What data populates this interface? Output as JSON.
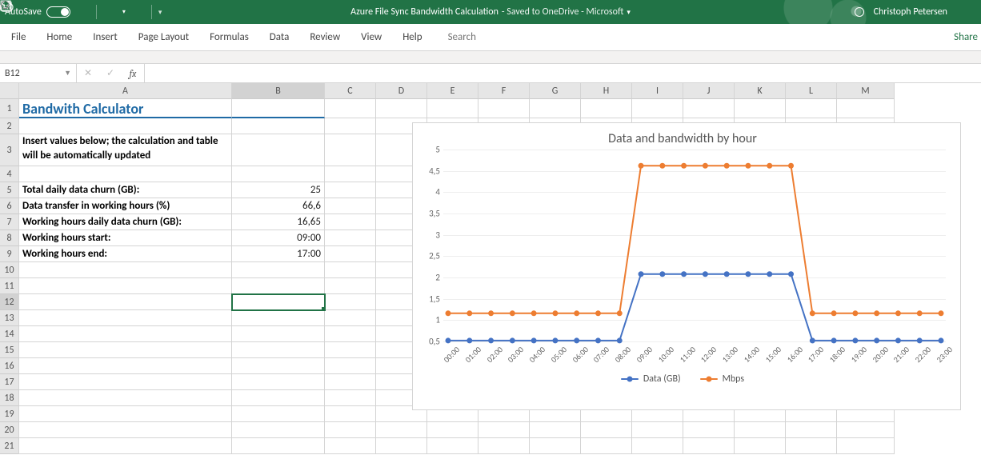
{
  "titlebar": {
    "autosave_label": "AutoSave",
    "doc_title": "Azure File Sync Bandwidth Calculation",
    "doc_status": "  -  Saved to OneDrive - Microsoft  ",
    "dropdown_glyph": "▾",
    "user_name": "Christoph Petersen"
  },
  "ribbon": {
    "tabs": [
      "File",
      "Home",
      "Insert",
      "Page Layout",
      "Formulas",
      "Data",
      "Review",
      "View",
      "Help"
    ],
    "search_placeholder": "Search",
    "share_label": "Share"
  },
  "formula_bar": {
    "name_box": "B12",
    "cancel": "✕",
    "accept": "✓",
    "fx": "fx"
  },
  "columns": [
    "A",
    "B",
    "C",
    "D",
    "E",
    "F",
    "G",
    "H",
    "I",
    "J",
    "K",
    "L",
    "M"
  ],
  "rows": [
    1,
    2,
    3,
    4,
    5,
    6,
    7,
    8,
    9,
    10,
    11,
    12,
    13,
    14,
    15,
    16,
    17,
    18,
    19,
    20,
    21
  ],
  "selected": {
    "row_idx": 11,
    "col_idx": 1,
    "row_label": "12",
    "col_label": "B"
  },
  "content": {
    "title": "Bandwith Calculator",
    "instructions": "Insert values below; the calculation and table will be",
    "instructions2": "automatically updated",
    "labels": {
      "total_churn": "Total daily data churn (GB):",
      "pct_working": "Data transfer in working hours (%)",
      "working_churn": "Working hours daily data churn (GB):",
      "start": "Working hours start:",
      "end": "Working hours end:"
    },
    "values": {
      "total_churn": "25",
      "pct_working": "66,6",
      "working_churn": "16,65",
      "start": "09:00",
      "end": "17:00"
    }
  },
  "chart": {
    "title": "Data and bandwidth by hour",
    "type": "line",
    "background_color": "#ffffff",
    "grid_color": "#eeeeee",
    "title_fontsize": 16,
    "label_fontsize": 11,
    "yticks": [
      "0,5",
      "1",
      "1,5",
      "2",
      "2,5",
      "3",
      "3,5",
      "4",
      "4,5",
      "5"
    ],
    "ymin": 0.5,
    "ymax": 5.0,
    "x_labels": [
      "00:00",
      "01:00",
      "02:00",
      "03:00",
      "04:00",
      "05:00",
      "06:00",
      "07:00",
      "08:00",
      "09:00",
      "10:00",
      "11:00",
      "12:00",
      "13:00",
      "14:00",
      "15:00",
      "16:00",
      "17:00",
      "18:00",
      "19:00",
      "20:00",
      "21:00",
      "22:00",
      "23:00"
    ],
    "series": [
      {
        "name": "Data (GB)",
        "color": "#4472c4",
        "marker": "circle",
        "line_width": 2,
        "values": [
          0.52,
          0.52,
          0.52,
          0.52,
          0.52,
          0.52,
          0.52,
          0.52,
          0.52,
          2.08,
          2.08,
          2.08,
          2.08,
          2.08,
          2.08,
          2.08,
          2.08,
          0.52,
          0.52,
          0.52,
          0.52,
          0.52,
          0.52,
          0.52
        ]
      },
      {
        "name": "Mbps",
        "color": "#ed7d31",
        "marker": "circle",
        "line_width": 2,
        "values": [
          1.16,
          1.16,
          1.16,
          1.16,
          1.16,
          1.16,
          1.16,
          1.16,
          1.16,
          4.62,
          4.62,
          4.62,
          4.62,
          4.62,
          4.62,
          4.62,
          4.62,
          1.16,
          1.16,
          1.16,
          1.16,
          1.16,
          1.16,
          1.16
        ]
      }
    ]
  }
}
